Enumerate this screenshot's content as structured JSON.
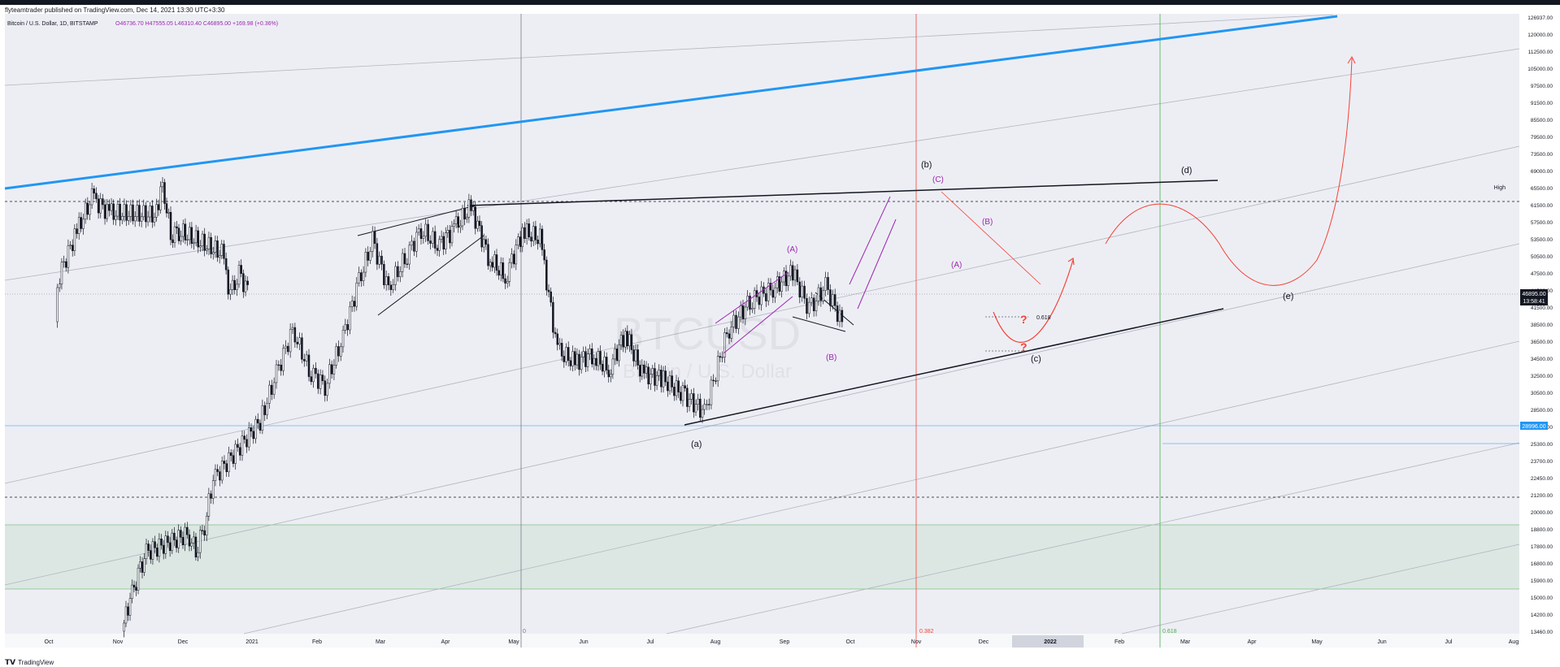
{
  "header": {
    "publish_line": "flyteamtrader published on TradingView.com, Dec 14, 2021 13:30 UTC+3:30"
  },
  "legend": {
    "symbol_line": "Bitcoin / U.S. Dollar, 1D, BITSTAMP",
    "ohlc_line": "O46736.70 H47555.05 L46310.40 C46895.00 +169.98 (+0.36%)"
  },
  "watermark": {
    "ticker": "BTCUSD",
    "name": "Bitcoin / U.S. Dollar"
  },
  "price_badges": {
    "last_price": "46895.00",
    "countdown": "13:58:41",
    "support_price": "28996.00",
    "high_label": "High"
  },
  "fib_labels": {
    "zero": "0",
    "mid": "0.382",
    "end": "0.618",
    "retracement": "0.618"
  },
  "wave_labels": {
    "a": "(a)",
    "b": "(b)",
    "c": "(c)",
    "d": "(d)",
    "e": "(e)",
    "A_upper": "(A)",
    "B_lower": "(B)",
    "C_upper": "(C)",
    "A_lower": "(A)",
    "B_upper": "(B)",
    "question": "?"
  },
  "footer": {
    "brand": "TradingView"
  },
  "colors": {
    "background": "#ffffff",
    "plot_bg": "#edeef4",
    "candle": "#131722",
    "wave_purple": "#9c27b0",
    "channel_blue": "#2196f3",
    "projection_red": "#f44336",
    "zone_green": "#4caf50",
    "fib_red": "#f44336",
    "fib_green": "#4caf50"
  },
  "chart_data": {
    "type": "candlestick",
    "title": "Bitcoin / U.S. Dollar, 1D, BITSTAMP",
    "x_axis": {
      "labels": [
        "Oct",
        "Nov",
        "Dec",
        "2021",
        "Feb",
        "Mar",
        "Apr",
        "May",
        "Jun",
        "Jul",
        "Aug",
        "Sep",
        "Oct",
        "Nov",
        "Dec",
        "2022",
        "Feb",
        "Mar",
        "Apr",
        "May",
        "Jun",
        "Jul",
        "Aug"
      ],
      "highlighted": "2022"
    },
    "y_axis": {
      "scale": "log",
      "ticks": [
        "126937.00",
        "120000.00",
        "112500.00",
        "105000.00",
        "97500.00",
        "91500.00",
        "85500.00",
        "79500.00",
        "73500.00",
        "69000.00",
        "65500.00",
        "61500.00",
        "57500.00",
        "53500.00",
        "50500.00",
        "47500.00",
        "44500.00",
        "41500.00",
        "38500.00",
        "36500.00",
        "34500.00",
        "32500.00",
        "30500.00",
        "28500.00",
        "26900.00",
        "25300.00",
        "23700.00",
        "22450.00",
        "21200.00",
        "20000.00",
        "18800.00",
        "17800.00",
        "16800.00",
        "15900.00",
        "15000.00",
        "14200.00",
        "13460.00"
      ]
    },
    "price_path": [
      [
        "Nov",
        13500
      ],
      [
        "Nov",
        15200
      ],
      [
        "Nov",
        16500
      ],
      [
        "Nov",
        18000
      ],
      [
        "Dec",
        19200
      ],
      [
        "Dec",
        18200
      ],
      [
        "Dec",
        19800
      ],
      [
        "Dec",
        23500
      ],
      [
        "2021",
        29000
      ],
      [
        "2021",
        34500
      ],
      [
        "2021",
        40500
      ],
      [
        "2021",
        35000
      ],
      [
        "Feb",
        33000
      ],
      [
        "Feb",
        38500
      ],
      [
        "Feb",
        47000
      ],
      [
        "Feb",
        56000
      ],
      [
        "Mar",
        47000
      ],
      [
        "Mar",
        52500
      ],
      [
        "Mar",
        58500
      ],
      [
        "Mar",
        55000
      ],
      [
        "Apr",
        58500
      ],
      [
        "Apr",
        63500
      ],
      [
        "Apr",
        53000
      ],
      [
        "Apr",
        49000
      ],
      [
        "May",
        58000
      ],
      [
        "May",
        56500
      ],
      [
        "May",
        37500
      ],
      [
        "May",
        36000
      ],
      [
        "Jun",
        37000
      ],
      [
        "Jun",
        35000
      ],
      [
        "Jun",
        40000
      ],
      [
        "Jun",
        34500
      ],
      [
        "Jul",
        34000
      ],
      [
        "Jul",
        32000
      ],
      [
        "Jul",
        30000
      ],
      [
        "Aug",
        40000
      ],
      [
        "Aug",
        45000
      ],
      [
        "Aug",
        47000
      ],
      [
        "Sep",
        50000
      ],
      [
        "Sep",
        43500
      ],
      [
        "Sep",
        47500
      ],
      [
        "Sep",
        41500
      ],
      [
        "Oct",
        48500
      ],
      [
        "Oct",
        57000
      ],
      [
        "Oct",
        65500
      ],
      [
        "Oct",
        62000
      ],
      [
        "Nov",
        61500
      ],
      [
        "Nov",
        68500
      ],
      [
        "Nov",
        57500
      ],
      [
        "Nov",
        58000
      ],
      [
        "Dec",
        53500
      ],
      [
        "Dec",
        46000
      ],
      [
        "Dec",
        49500
      ],
      [
        "Dec",
        46895
      ]
    ],
    "levels": {
      "last_price": 46895,
      "support": 28996,
      "resistance_dashed": 66000,
      "lower_dashed": 22450,
      "green_zone": [
        15900,
        20000
      ],
      "fib_0618_marker": 43500
    },
    "annotations": [
      "(a)",
      "(b)",
      "(c)",
      "(d)",
      "(e)",
      "(A)",
      "(B)",
      "(C)",
      "0.618"
    ],
    "grid": true
  }
}
